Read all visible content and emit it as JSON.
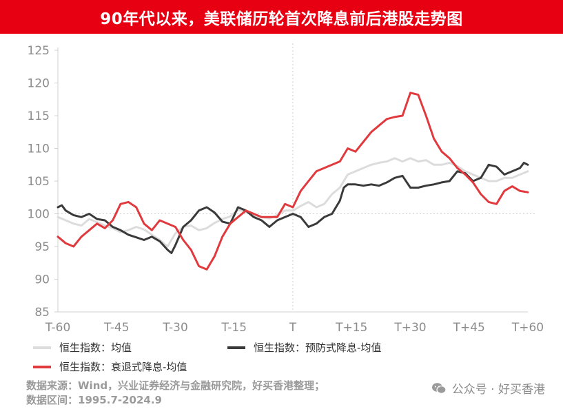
{
  "title": "90年代以来，美联储历轮首次降息前后港股走势图",
  "chart_data": {
    "type": "line",
    "xlim": [
      -60,
      60
    ],
    "ylim": [
      85,
      125
    ],
    "y_ticks": [
      85,
      90,
      95,
      100,
      105,
      110,
      115,
      120,
      125
    ],
    "x_ticks": [
      {
        "value": -60,
        "label": "T-60"
      },
      {
        "value": -45,
        "label": "T-45"
      },
      {
        "value": -30,
        "label": "T-30"
      },
      {
        "value": -15,
        "label": "T-15"
      },
      {
        "value": 0,
        "label": "T"
      },
      {
        "value": 15,
        "label": "T+15"
      },
      {
        "value": 30,
        "label": "T+30"
      },
      {
        "value": 45,
        "label": "T+45"
      },
      {
        "value": 60,
        "label": "T+60"
      }
    ],
    "reference_lines": {
      "x": 0,
      "y": 100
    },
    "grid": false,
    "legend_position": "bottom",
    "series": [
      {
        "name": "恒生指数：均值",
        "color": "#dcdcdc",
        "points": [
          [
            -60,
            99.5
          ],
          [
            -58,
            99.0
          ],
          [
            -56,
            98.5
          ],
          [
            -54,
            98.2
          ],
          [
            -52,
            99.2
          ],
          [
            -50,
            98.7
          ],
          [
            -48,
            98.2
          ],
          [
            -46,
            97.8
          ],
          [
            -44,
            97.2
          ],
          [
            -42,
            97.5
          ],
          [
            -40,
            98.0
          ],
          [
            -38,
            97.6
          ],
          [
            -36,
            96.8
          ],
          [
            -34,
            96.0
          ],
          [
            -32,
            95.0
          ],
          [
            -31,
            96.0
          ],
          [
            -30,
            97.0
          ],
          [
            -28,
            98.0
          ],
          [
            -26,
            98.2
          ],
          [
            -24,
            97.5
          ],
          [
            -22,
            97.8
          ],
          [
            -20,
            98.6
          ],
          [
            -18,
            99.2
          ],
          [
            -16,
            99.6
          ],
          [
            -14,
            100.6
          ],
          [
            -12,
            100.3
          ],
          [
            -10,
            99.8
          ],
          [
            -8,
            99.5
          ],
          [
            -6,
            99.3
          ],
          [
            -4,
            99.8
          ],
          [
            -2,
            100.5
          ],
          [
            0,
            100.5
          ],
          [
            2,
            101.2
          ],
          [
            4,
            101.8
          ],
          [
            6,
            101.0
          ],
          [
            8,
            101.5
          ],
          [
            10,
            103.0
          ],
          [
            12,
            104.0
          ],
          [
            14,
            106.0
          ],
          [
            16,
            106.5
          ],
          [
            18,
            107.0
          ],
          [
            20,
            107.5
          ],
          [
            22,
            107.8
          ],
          [
            24,
            108.0
          ],
          [
            26,
            108.5
          ],
          [
            28,
            108.0
          ],
          [
            30,
            108.5
          ],
          [
            32,
            108.0
          ],
          [
            34,
            108.2
          ],
          [
            36,
            107.5
          ],
          [
            38,
            107.5
          ],
          [
            40,
            107.8
          ],
          [
            42,
            107.3
          ],
          [
            44,
            106.5
          ],
          [
            46,
            106.0
          ],
          [
            48,
            105.5
          ],
          [
            50,
            105.0
          ],
          [
            52,
            105.0
          ],
          [
            54,
            105.5
          ],
          [
            56,
            105.5
          ],
          [
            58,
            106.0
          ],
          [
            60,
            106.5
          ]
        ]
      },
      {
        "name": "恒生指数：预防式降息-均值",
        "color": "#3a3a3a",
        "points": [
          [
            -60,
            101.0
          ],
          [
            -59,
            101.3
          ],
          [
            -58,
            100.5
          ],
          [
            -56,
            99.8
          ],
          [
            -54,
            99.5
          ],
          [
            -52,
            100.0
          ],
          [
            -50,
            99.2
          ],
          [
            -48,
            99.0
          ],
          [
            -46,
            98.0
          ],
          [
            -44,
            97.5
          ],
          [
            -42,
            96.8
          ],
          [
            -40,
            96.4
          ],
          [
            -38,
            96.0
          ],
          [
            -36,
            96.5
          ],
          [
            -34,
            95.8
          ],
          [
            -32,
            94.5
          ],
          [
            -31,
            94.0
          ],
          [
            -30,
            95.2
          ],
          [
            -28,
            98.0
          ],
          [
            -26,
            99.0
          ],
          [
            -24,
            100.5
          ],
          [
            -22,
            101.0
          ],
          [
            -20,
            100.2
          ],
          [
            -18,
            98.8
          ],
          [
            -16,
            98.5
          ],
          [
            -14,
            101.0
          ],
          [
            -12,
            100.5
          ],
          [
            -10,
            99.5
          ],
          [
            -8,
            99.0
          ],
          [
            -6,
            98.0
          ],
          [
            -4,
            99.0
          ],
          [
            -2,
            99.5
          ],
          [
            0,
            100.0
          ],
          [
            2,
            99.5
          ],
          [
            4,
            98.0
          ],
          [
            6,
            98.5
          ],
          [
            8,
            99.5
          ],
          [
            10,
            100.0
          ],
          [
            12,
            102.0
          ],
          [
            13,
            104.0
          ],
          [
            14,
            104.5
          ],
          [
            16,
            104.5
          ],
          [
            18,
            104.3
          ],
          [
            20,
            104.5
          ],
          [
            22,
            104.3
          ],
          [
            24,
            104.8
          ],
          [
            26,
            105.5
          ],
          [
            28,
            105.8
          ],
          [
            30,
            104.0
          ],
          [
            32,
            104.0
          ],
          [
            34,
            104.3
          ],
          [
            36,
            104.5
          ],
          [
            38,
            104.8
          ],
          [
            40,
            105.0
          ],
          [
            42,
            106.5
          ],
          [
            44,
            106.2
          ],
          [
            46,
            105.0
          ],
          [
            48,
            105.5
          ],
          [
            50,
            107.5
          ],
          [
            52,
            107.2
          ],
          [
            54,
            106.0
          ],
          [
            56,
            106.5
          ],
          [
            58,
            107.0
          ],
          [
            59,
            107.8
          ],
          [
            60,
            107.5
          ]
        ]
      },
      {
        "name": "恒生指数：衰退式降息-均值",
        "color": "#e03a3e",
        "points": [
          [
            -60,
            96.5
          ],
          [
            -58,
            95.5
          ],
          [
            -56,
            95.0
          ],
          [
            -54,
            96.5
          ],
          [
            -52,
            97.5
          ],
          [
            -50,
            98.5
          ],
          [
            -48,
            97.8
          ],
          [
            -46,
            99.0
          ],
          [
            -44,
            101.5
          ],
          [
            -42,
            101.8
          ],
          [
            -40,
            101.0
          ],
          [
            -38,
            98.5
          ],
          [
            -36,
            97.5
          ],
          [
            -34,
            99.0
          ],
          [
            -32,
            98.5
          ],
          [
            -30,
            98.0
          ],
          [
            -28,
            96.0
          ],
          [
            -26,
            94.5
          ],
          [
            -24,
            92.0
          ],
          [
            -22,
            91.5
          ],
          [
            -20,
            93.5
          ],
          [
            -18,
            96.5
          ],
          [
            -16,
            98.5
          ],
          [
            -14,
            99.5
          ],
          [
            -12,
            100.5
          ],
          [
            -10,
            100.0
          ],
          [
            -8,
            99.5
          ],
          [
            -6,
            99.5
          ],
          [
            -4,
            99.5
          ],
          [
            -2,
            101.5
          ],
          [
            0,
            101.0
          ],
          [
            2,
            103.5
          ],
          [
            4,
            105.0
          ],
          [
            6,
            106.5
          ],
          [
            8,
            107.0
          ],
          [
            10,
            107.5
          ],
          [
            12,
            108.0
          ],
          [
            14,
            110.0
          ],
          [
            16,
            109.5
          ],
          [
            18,
            111.0
          ],
          [
            20,
            112.5
          ],
          [
            22,
            113.5
          ],
          [
            24,
            114.5
          ],
          [
            26,
            114.8
          ],
          [
            28,
            115.0
          ],
          [
            30,
            118.5
          ],
          [
            32,
            118.2
          ],
          [
            34,
            115.0
          ],
          [
            36,
            111.5
          ],
          [
            38,
            109.5
          ],
          [
            40,
            108.5
          ],
          [
            42,
            107.0
          ],
          [
            44,
            106.0
          ],
          [
            46,
            104.8
          ],
          [
            48,
            103.0
          ],
          [
            50,
            101.8
          ],
          [
            52,
            101.5
          ],
          [
            54,
            103.5
          ],
          [
            56,
            104.2
          ],
          [
            58,
            103.5
          ],
          [
            60,
            103.3
          ]
        ]
      }
    ]
  },
  "legend": [
    {
      "label": "恒生指数：均值",
      "color": "#dcdcdc"
    },
    {
      "label": "恒生指数：预防式降息-均值",
      "color": "#3a3a3a"
    },
    {
      "label": "恒生指数：衰退式降息-均值",
      "color": "#e03a3e"
    }
  ],
  "source_line": "数据来源：Wind，兴业证券经济与金融研究院，好买香港整理；",
  "range_line": "数据区间：1995.7-2024.9",
  "watermark": {
    "icon": "wechat-icon",
    "text": "公众号 · 好买香港"
  }
}
